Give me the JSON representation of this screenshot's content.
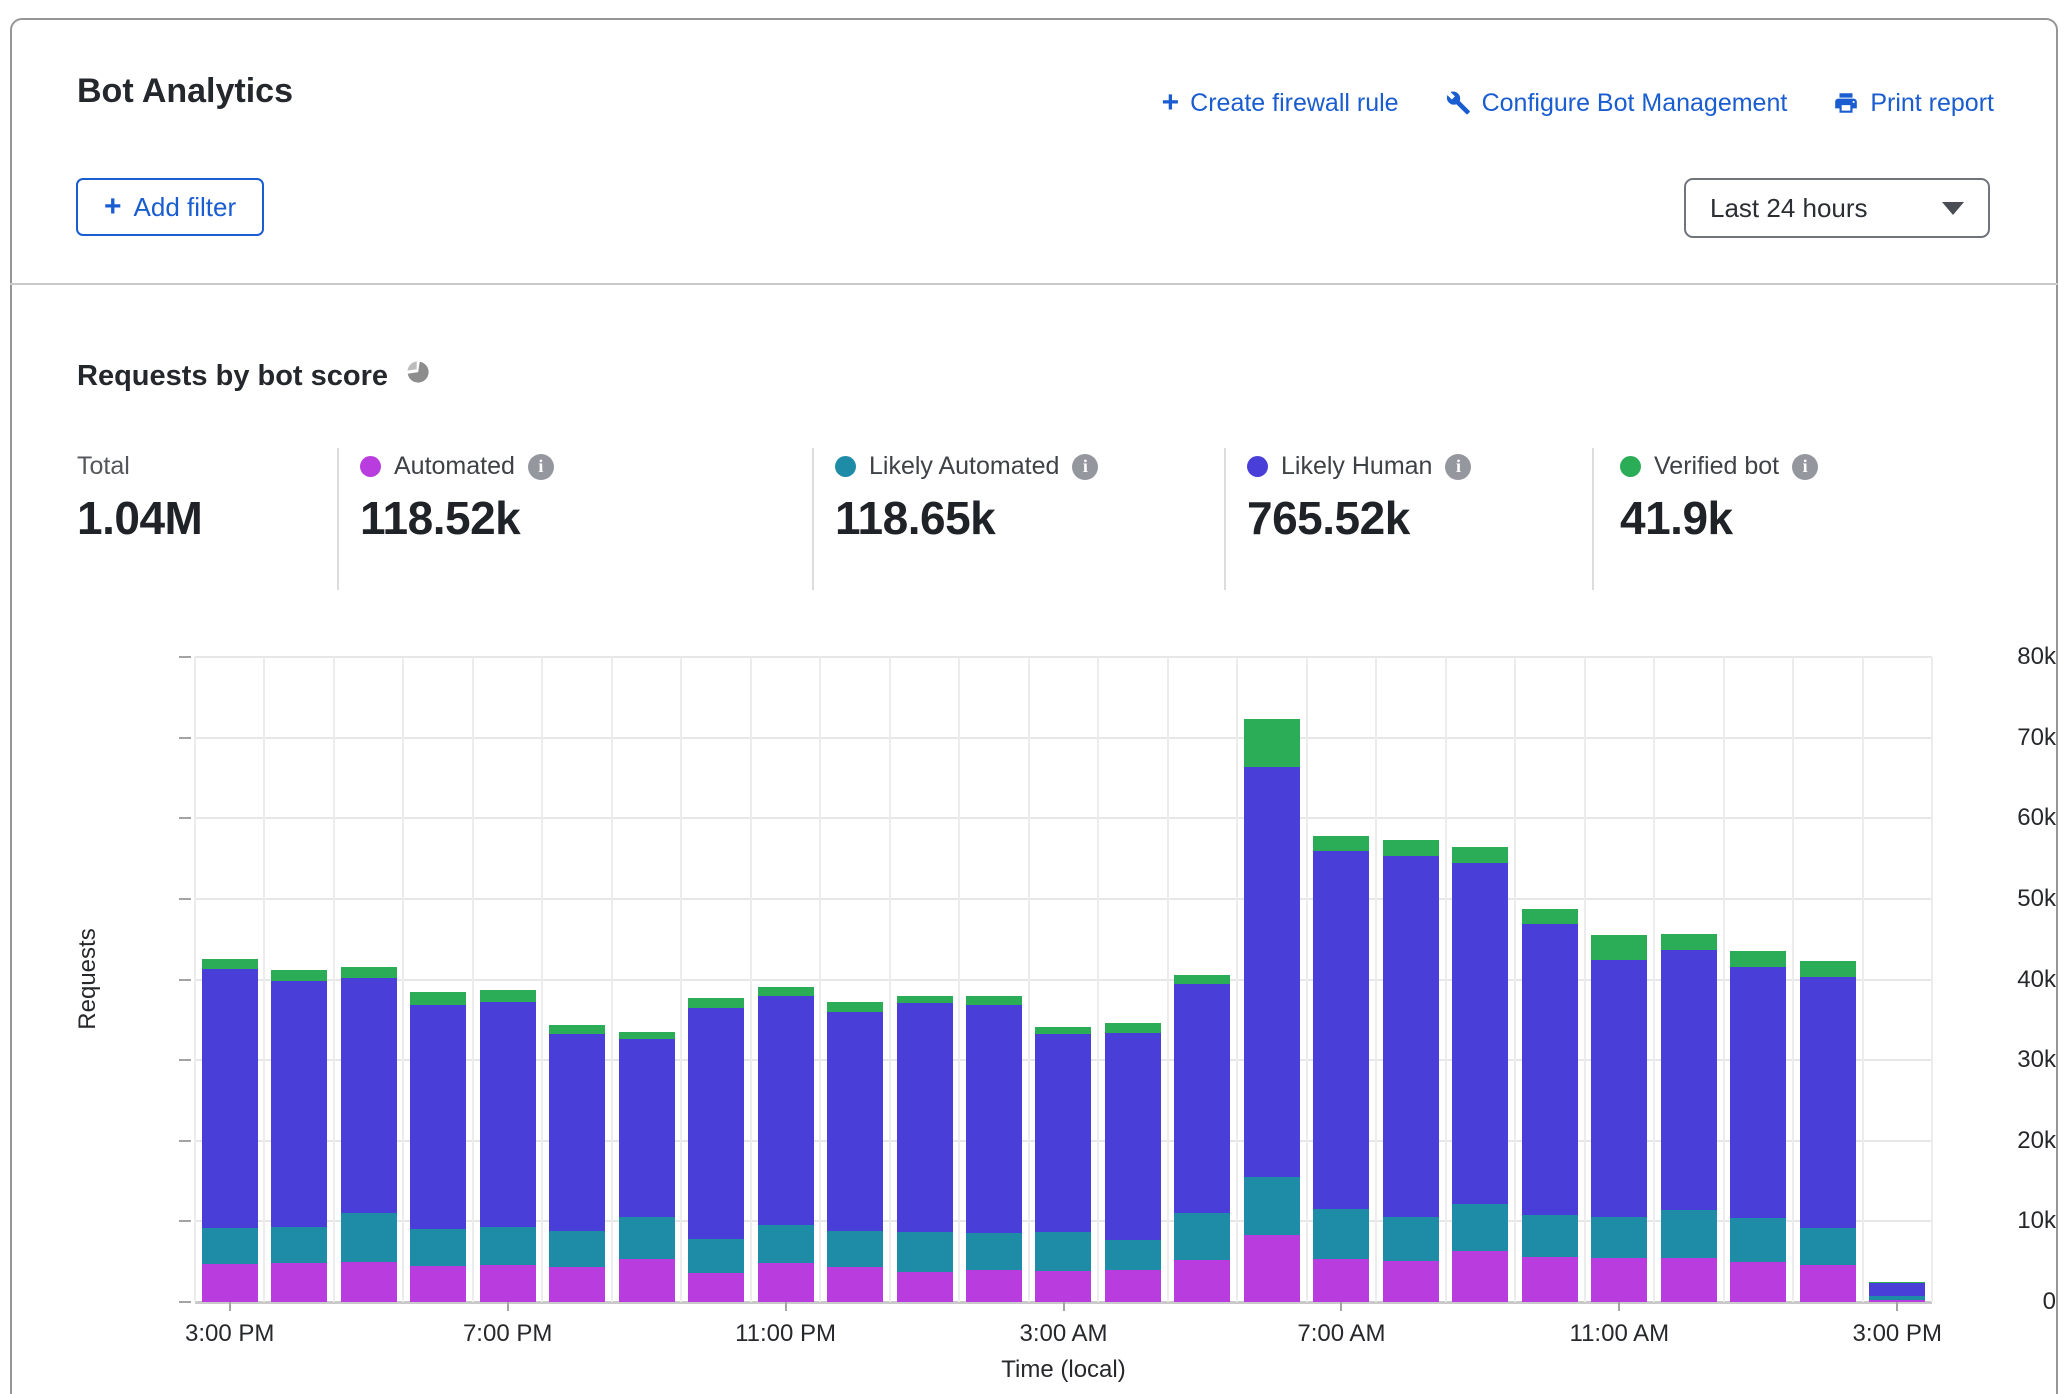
{
  "header": {
    "title": "Bot Analytics",
    "links": [
      {
        "label": "Create firewall rule",
        "icon": "plus-icon"
      },
      {
        "label": "Configure Bot Management",
        "icon": "wrench-icon"
      },
      {
        "label": "Print report",
        "icon": "printer-icon"
      }
    ],
    "add_filter_label": "Add filter",
    "time_range": "Last 24 hours"
  },
  "section": {
    "title": "Requests by bot score",
    "icon": "pie-chart-icon"
  },
  "colors": {
    "link_blue": "#1a5dd0",
    "automated": "#b93dde",
    "likely_automated": "#1e8ca6",
    "likely_human": "#4a3ed9",
    "verified_bot": "#2bad57"
  },
  "stats": [
    {
      "label": "Total",
      "value": "1.04M"
    },
    {
      "label": "Automated",
      "value": "118.52k"
    },
    {
      "label": "Likely Automated",
      "value": "118.65k"
    },
    {
      "label": "Likely Human",
      "value": "765.52k"
    },
    {
      "label": "Verified bot",
      "value": "41.9k"
    }
  ],
  "chart_data": {
    "type": "bar",
    "stacked": true,
    "title": "Requests by bot score",
    "xlabel": "Time (local)",
    "ylabel": "Requests",
    "ylim": [
      0,
      80000
    ],
    "yticks": [
      0,
      10000,
      20000,
      30000,
      40000,
      50000,
      60000,
      70000,
      80000
    ],
    "grid": true,
    "x": [
      "3:00 PM",
      "4:00 PM",
      "5:00 PM",
      "6:00 PM",
      "7:00 PM",
      "8:00 PM",
      "9:00 PM",
      "10:00 PM",
      "11:00 PM",
      "12:00 AM",
      "1:00 AM",
      "2:00 AM",
      "3:00 AM",
      "4:00 AM",
      "5:00 AM",
      "6:00 AM",
      "7:00 AM",
      "8:00 AM",
      "9:00 AM",
      "10:00 AM",
      "11:00 AM",
      "12:00 PM",
      "1:00 PM",
      "2:00 PM",
      "3:00 PM"
    ],
    "xtick_indices": [
      0,
      4,
      8,
      12,
      16,
      20,
      24
    ],
    "series": [
      {
        "name": "Automated",
        "color": "#b93dde",
        "values": [
          4700,
          4800,
          5000,
          4500,
          4600,
          4400,
          5300,
          3600,
          4800,
          4400,
          3700,
          4000,
          3900,
          4000,
          5200,
          8300,
          5300,
          5100,
          6300,
          5600,
          5400,
          5500,
          5000,
          4600,
          300
        ]
      },
      {
        "name": "Likely Automated",
        "color": "#1e8ca6",
        "values": [
          4500,
          4500,
          6000,
          4500,
          4700,
          4400,
          5200,
          4200,
          4700,
          4400,
          5000,
          4600,
          4800,
          3700,
          5800,
          7200,
          6200,
          5400,
          5900,
          5200,
          5100,
          5900,
          5400,
          4600,
          400
        ]
      },
      {
        "name": "Likely Human",
        "color": "#4a3ed9",
        "values": [
          32100,
          30500,
          29200,
          27800,
          27900,
          24400,
          22100,
          28700,
          28400,
          27200,
          28400,
          28300,
          24500,
          25700,
          28500,
          50900,
          44500,
          44800,
          42300,
          36100,
          31900,
          32300,
          31200,
          31100,
          1700
        ]
      },
      {
        "name": "Verified bot",
        "color": "#2bad57",
        "values": [
          1300,
          1400,
          1400,
          1600,
          1500,
          1100,
          900,
          1200,
          1200,
          1200,
          900,
          1100,
          900,
          1200,
          1000,
          5900,
          1800,
          2000,
          2000,
          1900,
          3100,
          1900,
          1900,
          2000,
          100
        ]
      }
    ],
    "legend_position": "top"
  },
  "layout": {
    "stat_lefts": [
      65,
      348,
      823,
      1235,
      1608
    ],
    "stat_divider_lefts": [
      325,
      800,
      1212,
      1580
    ]
  }
}
